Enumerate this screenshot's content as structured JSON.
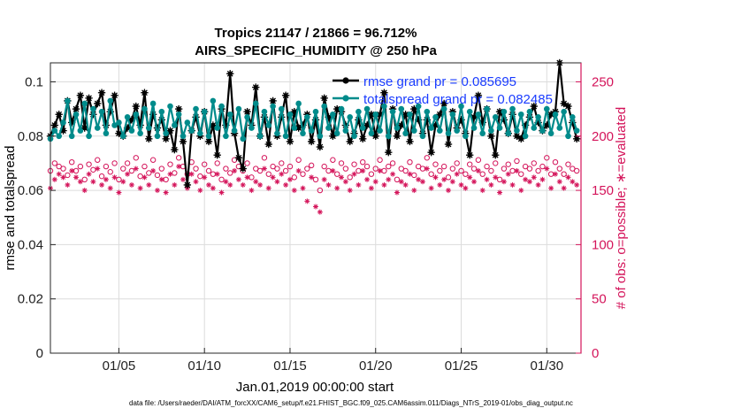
{
  "chart_data": {
    "type": "line",
    "title": "Tropics 21147 / 21866 = 96.712%",
    "subtitle": "AIRS_SPECIFIC_HUMIDITY @ 250 hPa",
    "xlabel": "Jan.01,2019 00:00:00 start",
    "ylabel_left": "rmse and totalspread",
    "ylabel_right": "# of obs: o=possible; ∗=evaluated",
    "x_range": [
      1.0,
      32.0
    ],
    "ylim_left": [
      0,
      0.107
    ],
    "ylim_right": [
      0,
      267.5
    ],
    "x_ticks": [
      5,
      10,
      15,
      20,
      25,
      30
    ],
    "x_tick_labels": [
      "01/05",
      "01/10",
      "01/15",
      "01/20",
      "01/25",
      "01/30"
    ],
    "y_ticks_left": [
      0,
      0.02,
      0.04,
      0.06,
      0.08,
      0.1
    ],
    "y_tick_labels_left": [
      "0",
      "0.02",
      "0.04",
      "0.06",
      "0.08",
      "0.1"
    ],
    "y_ticks_right": [
      0,
      50,
      100,
      150,
      200,
      250
    ],
    "y_tick_labels_right": [
      "0",
      "50",
      "100",
      "150",
      "200",
      "250"
    ],
    "grid": true,
    "legend_position": "top-right",
    "series": [
      {
        "name": "rmse grand pr = 0.085695",
        "color": "#000000",
        "marker": "asterisk-dot"
      },
      {
        "name": "totalspread grand pr = 0.082485",
        "color": "#008b8b",
        "marker": "dot"
      },
      {
        "name": "possible obs",
        "color": "#d4145a",
        "marker": "circle",
        "axis": "right"
      },
      {
        "name": "evaluated obs",
        "color": "#d4145a",
        "marker": "asterisk",
        "axis": "right"
      }
    ],
    "x": [
      1.0,
      1.25,
      1.5,
      1.75,
      2.0,
      2.25,
      2.5,
      2.75,
      3.0,
      3.25,
      3.5,
      3.75,
      4.0,
      4.25,
      4.5,
      4.75,
      5.0,
      5.25,
      5.5,
      5.75,
      6.0,
      6.25,
      6.5,
      6.75,
      7.0,
      7.25,
      7.5,
      7.75,
      8.0,
      8.25,
      8.5,
      8.75,
      9.0,
      9.25,
      9.5,
      9.75,
      10.0,
      10.25,
      10.5,
      10.75,
      11.0,
      11.25,
      11.5,
      11.75,
      12.0,
      12.25,
      12.5,
      12.75,
      13.0,
      13.25,
      13.5,
      13.75,
      14.0,
      14.25,
      14.5,
      14.75,
      15.0,
      15.25,
      15.5,
      15.75,
      16.0,
      16.25,
      16.5,
      16.75,
      17.0,
      17.25,
      17.5,
      17.75,
      18.0,
      18.25,
      18.5,
      18.75,
      19.0,
      19.25,
      19.5,
      19.75,
      20.0,
      20.25,
      20.5,
      20.75,
      21.0,
      21.25,
      21.5,
      21.75,
      22.0,
      22.25,
      22.5,
      22.75,
      23.0,
      23.25,
      23.5,
      23.75,
      24.0,
      24.25,
      24.5,
      24.75,
      25.0,
      25.25,
      25.5,
      25.75,
      26.0,
      26.25,
      26.5,
      26.75,
      27.0,
      27.25,
      27.5,
      27.75,
      28.0,
      28.25,
      28.5,
      28.75,
      29.0,
      29.25,
      29.5,
      29.75,
      30.0,
      30.25,
      30.5,
      30.75,
      31.0,
      31.25,
      31.5,
      31.75
    ],
    "rmse": [
      0.08,
      0.084,
      0.088,
      0.082,
      0.093,
      0.085,
      0.09,
      0.095,
      0.083,
      0.094,
      0.088,
      0.092,
      0.096,
      0.084,
      0.089,
      0.095,
      0.081,
      0.08,
      0.083,
      0.086,
      0.091,
      0.084,
      0.096,
      0.079,
      0.088,
      0.083,
      0.086,
      0.079,
      0.082,
      0.075,
      0.09,
      0.078,
      0.062,
      0.082,
      0.087,
      0.08,
      0.089,
      0.078,
      0.084,
      0.073,
      0.09,
      0.084,
      0.103,
      0.081,
      0.072,
      0.068,
      0.089,
      0.084,
      0.098,
      0.08,
      0.087,
      0.077,
      0.093,
      0.08,
      0.087,
      0.095,
      0.078,
      0.089,
      0.083,
      0.084,
      0.088,
      0.078,
      0.086,
      0.076,
      0.094,
      0.087,
      0.08,
      0.09,
      0.089,
      0.084,
      0.078,
      0.081,
      0.086,
      0.079,
      0.084,
      0.088,
      0.08,
      0.088,
      0.096,
      0.074,
      0.09,
      0.08,
      0.084,
      0.088,
      0.078,
      0.09,
      0.086,
      0.081,
      0.086,
      0.074,
      0.084,
      0.088,
      0.092,
      0.077,
      0.089,
      0.083,
      0.086,
      0.081,
      0.073,
      0.087,
      0.095,
      0.085,
      0.09,
      0.08,
      0.073,
      0.089,
      0.086,
      0.081,
      0.088,
      0.08,
      0.079,
      0.084,
      0.087,
      0.091,
      0.085,
      0.082,
      0.084,
      0.088,
      0.089,
      0.107,
      0.092,
      0.091,
      0.085,
      0.079,
      0.083,
      0.08,
      0.077,
      0.087
    ],
    "totalspread": [
      0.079,
      0.082,
      0.08,
      0.085,
      0.093,
      0.08,
      0.088,
      0.082,
      0.092,
      0.08,
      0.09,
      0.083,
      0.089,
      0.081,
      0.093,
      0.084,
      0.085,
      0.08,
      0.087,
      0.082,
      0.088,
      0.081,
      0.09,
      0.083,
      0.092,
      0.08,
      0.089,
      0.081,
      0.091,
      0.084,
      0.088,
      0.08,
      0.085,
      0.082,
      0.09,
      0.081,
      0.089,
      0.08,
      0.093,
      0.083,
      0.091,
      0.08,
      0.088,
      0.082,
      0.09,
      0.079,
      0.087,
      0.083,
      0.092,
      0.08,
      0.089,
      0.084,
      0.091,
      0.081,
      0.09,
      0.08,
      0.088,
      0.083,
      0.092,
      0.081,
      0.087,
      0.082,
      0.089,
      0.08,
      0.091,
      0.083,
      0.088,
      0.081,
      0.09,
      0.082,
      0.087,
      0.08,
      0.089,
      0.083,
      0.09,
      0.081,
      0.088,
      0.082,
      0.091,
      0.08,
      0.089,
      0.083,
      0.09,
      0.081,
      0.088,
      0.082,
      0.091,
      0.08,
      0.089,
      0.083,
      0.087,
      0.082,
      0.09,
      0.081,
      0.088,
      0.082,
      0.091,
      0.08,
      0.089,
      0.083,
      0.088,
      0.081,
      0.09,
      0.082,
      0.087,
      0.083,
      0.089,
      0.081,
      0.09,
      0.082,
      0.088,
      0.08,
      0.089,
      0.083,
      0.087,
      0.082,
      0.09,
      0.081,
      0.088,
      0.083,
      0.089,
      0.08,
      0.087,
      0.082,
      0.086,
      0.081,
      0.085,
      0.08
    ],
    "obs_possible": [
      168,
      175,
      172,
      170,
      164,
      176,
      168,
      172,
      160,
      174,
      169,
      178,
      163,
      172,
      167,
      175,
      160,
      170,
      175,
      168,
      180,
      163,
      172,
      166,
      178,
      164,
      170,
      160,
      174,
      166,
      180,
      172,
      165,
      176,
      170,
      163,
      174,
      168,
      165,
      175,
      160,
      170,
      166,
      178,
      172,
      168,
      175,
      162,
      170,
      168,
      180,
      165,
      172,
      170,
      175,
      168,
      172,
      162,
      178,
      165,
      170,
      173,
      160,
      150,
      172,
      168,
      178,
      165,
      175,
      170,
      162,
      174,
      168,
      176,
      172,
      165,
      170,
      178,
      168,
      172,
      175,
      160,
      170,
      168,
      176,
      164,
      172,
      170,
      180,
      165,
      174,
      168,
      172,
      162,
      170,
      175,
      168,
      165,
      174,
      170,
      178,
      165,
      172,
      168,
      175,
      160,
      170,
      174,
      168,
      177,
      165,
      172,
      170,
      175,
      168,
      172,
      180,
      165,
      176,
      170,
      165,
      174,
      170,
      168,
      172,
      175,
      168,
      170
    ],
    "obs_evaluated": [
      152,
      160,
      165,
      162,
      155,
      168,
      162,
      158,
      150,
      165,
      158,
      170,
      155,
      160,
      152,
      162,
      148,
      158,
      165,
      155,
      170,
      152,
      162,
      155,
      168,
      150,
      160,
      148,
      165,
      155,
      172,
      160,
      152,
      165,
      158,
      150,
      162,
      155,
      152,
      165,
      148,
      158,
      155,
      168,
      160,
      155,
      162,
      150,
      158,
      155,
      170,
      152,
      162,
      158,
      165,
      155,
      160,
      150,
      168,
      152,
      140,
      162,
      135,
      130,
      160,
      155,
      168,
      152,
      162,
      158,
      150,
      165,
      155,
      168,
      160,
      152,
      158,
      168,
      155,
      160,
      165,
      148,
      158,
      155,
      165,
      150,
      160,
      158,
      170,
      152,
      162,
      155,
      160,
      150,
      158,
      165,
      155,
      152,
      162,
      158,
      168,
      150,
      160,
      155,
      162,
      148,
      158,
      165,
      155,
      168,
      150,
      160,
      158,
      162,
      155,
      160,
      170,
      152,
      165,
      158,
      152,
      162,
      158,
      155,
      160,
      165,
      175,
      158
    ]
  },
  "footer": "data file: /Users/raeder/DAI/ATM_forcXX/CAM6_setup/f.e21.FHIST_BGC.f09_025.CAM6assim.011/Diags_NTrS_2019-01/obs_diag_output.nc",
  "colors": {
    "rmse": "#000000",
    "totalspread": "#008b8b",
    "obs": "#d4145a",
    "legend_text": "#1a3cff",
    "grid": "#dcdcdc"
  }
}
